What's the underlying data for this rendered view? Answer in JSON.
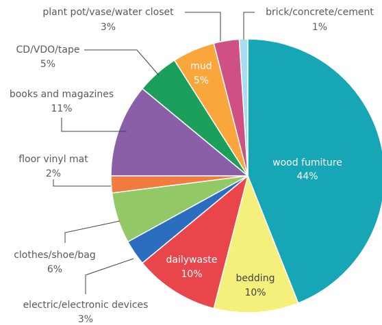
{
  "chart_data": {
    "type": "pie",
    "categories": [
      "wood fumiture",
      "bedding",
      "dailywaste",
      "electric/electronic devices",
      "clothes/shoe/bag",
      "floor vinyl mat",
      "books and magazines",
      "CD/VDO/tape",
      "mud",
      "plant pot/vase/water closet",
      "brick/concrete/cement"
    ],
    "values": [
      44,
      10,
      10,
      3,
      6,
      2,
      11,
      5,
      5,
      3,
      1
    ],
    "value_labels": [
      "44%",
      "10%",
      "10%",
      "3%",
      "6%",
      "2%",
      "11%",
      "5%",
      "5%",
      "3%",
      "1%"
    ],
    "colors": [
      "#17a6b6",
      "#f5ef7c",
      "#e8464b",
      "#2b6ebf",
      "#93c866",
      "#f27b3f",
      "#8b5ea8",
      "#1b9f5b",
      "#f9a63c",
      "#cf5082",
      "#a9dbf1"
    ]
  }
}
